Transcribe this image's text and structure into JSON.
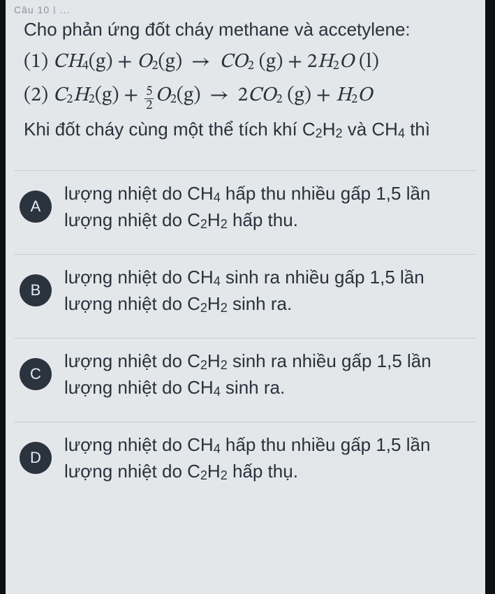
{
  "colors": {
    "page_bg": "#e4e7ea",
    "frame_border": "#0d0f12",
    "text": "#28323c",
    "divider": "#c6cdd6",
    "badge_bg": "#2b333f",
    "badge_fg": "#e6ecf2"
  },
  "crumb": "Câu 10  |  ...",
  "question": {
    "intro": "Cho phản ứng đốt cháy methane và accetylene:",
    "eq1_label": "(1)",
    "eq2_label": "(2)",
    "eq1_lhs_a": "CH",
    "eq1_lhs_a_sub": "4",
    "eq1_lhs_a_state": "(g)",
    "eq1_lhs_b": "O",
    "eq1_lhs_b_sub": "2",
    "eq1_lhs_b_state": "(g)",
    "eq1_rhs_a": "CO",
    "eq1_rhs_a_sub": "2",
    "eq1_rhs_a_state": "(g)",
    "eq1_rhs_b_coef": "2",
    "eq1_rhs_b": "H",
    "eq1_rhs_b_sub": "2",
    "eq1_rhs_b2": "O",
    "eq1_rhs_b_state": "(l)",
    "eq2_lhs_a": "C",
    "eq2_lhs_a_sub": "2",
    "eq2_lhs_a2": "H",
    "eq2_lhs_a2_sub": "2",
    "eq2_lhs_a_state": "(g)",
    "eq2_lhs_b_num": "5",
    "eq2_lhs_b_den": "2",
    "eq2_lhs_b": "O",
    "eq2_lhs_b_sub": "2",
    "eq2_lhs_b_state": "(g)",
    "eq2_rhs_a_coef": "2",
    "eq2_rhs_a": "CO",
    "eq2_rhs_a_sub": "2",
    "eq2_rhs_a_state": "(g)",
    "eq2_rhs_b": "H",
    "eq2_rhs_b_sub": "2",
    "eq2_rhs_b2": "O",
    "tail_a": "Khi đốt cháy cùng một thể tích khí C",
    "tail_b": " và CH",
    "tail_c": " thì",
    "sub2": "2",
    "sub4": "4"
  },
  "options": [
    {
      "key": "A",
      "t1": "lượng nhiệt do CH",
      "s1": "4",
      "t2": " hấp thu nhiều gấp 1,5 lần lượng nhiệt do C",
      "s2": "2",
      "t3": "H",
      "s3": "2",
      "t4": " hấp thu."
    },
    {
      "key": "B",
      "t1": "lượng nhiệt do CH",
      "s1": "4",
      "t2": " sinh ra nhiều gấp 1,5 lần lượng nhiệt do C",
      "s2": "2",
      "t3": "H",
      "s3": "2",
      "t4": " sinh ra."
    },
    {
      "key": "C",
      "t1": "lượng nhiệt do C",
      "s1": "2",
      "t2": "H",
      "s2": "2",
      "t3": " sinh ra nhiều gấp 1,5 lần lượng nhiệt do CH",
      "s3": "4",
      "t4": " sinh ra."
    },
    {
      "key": "D",
      "t1": "lượng nhiệt do CH",
      "s1": "4",
      "t2": " hấp thu nhiều gấp 1,5 lần lượng nhiệt do C",
      "s2": "2",
      "t3": "H",
      "s3": "2",
      "t4": " hấp thụ."
    }
  ]
}
